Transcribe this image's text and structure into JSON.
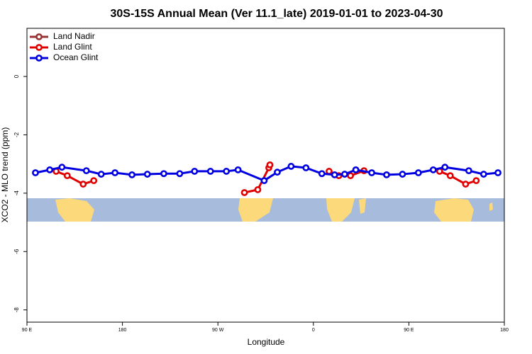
{
  "chart_data": {
    "type": "line",
    "title": "30S-15S Annual Mean (Ver 11.1_late)   2019-01-01 to 2023-04-30",
    "x_label": "Longitude",
    "y_label": "XCO2 - MLO trend (ppm)",
    "xlim": [
      90,
      540
    ],
    "xticks": [
      {
        "value": 90,
        "label": "90 E"
      },
      180,
      {
        "value": 270,
        "label": "90 W"
      },
      {
        "value": 360,
        "label": "0"
      },
      {
        "value": 450,
        "label": "90 E"
      },
      180
    ],
    "ylim": [
      -8.42,
      1.65
    ],
    "yticks": [
      0,
      -2,
      -4,
      -6,
      -8
    ],
    "legend": "top-left",
    "series": [
      {
        "name": "Land Nadir",
        "color": "#993333",
        "x": [],
        "values": []
      },
      {
        "name": "Land Glint",
        "color": "#e00000",
        "x": [
          117.5,
          128,
          143,
          153,
          null,
          295,
          307.6,
          318,
          319,
          null,
          374.8,
          384,
          395,
          407.7,
          null,
          479,
          489,
          503.5,
          513.5
        ],
        "values": [
          -3.25,
          -3.4,
          -3.69,
          -3.57,
          null,
          -3.98,
          -3.88,
          -3.13,
          -3.03,
          null,
          -3.25,
          -3.4,
          -3.4,
          -3.23,
          null,
          -3.25,
          -3.4,
          -3.69,
          -3.57
        ]
      },
      {
        "name": "Ocean Glint",
        "color": "#0000e0",
        "x": [
          98,
          111.5,
          123,
          146,
          160,
          173,
          189,
          203.5,
          219,
          234,
          248,
          263,
          278,
          289,
          313.6,
          326,
          339,
          353,
          368,
          380,
          389.5,
          400,
          415,
          429,
          444,
          459,
          473,
          484,
          506.5,
          520.5,
          534
        ],
        "values": [
          -3.3,
          -3.2,
          -3.11,
          -3.23,
          -3.35,
          -3.3,
          -3.37,
          -3.35,
          -3.33,
          -3.33,
          -3.25,
          -3.25,
          -3.25,
          -3.2,
          -3.57,
          -3.28,
          -3.08,
          -3.13,
          -3.33,
          -3.37,
          -3.35,
          -3.2,
          -3.3,
          -3.37,
          -3.35,
          -3.3,
          -3.2,
          -3.11,
          -3.23,
          -3.35,
          -3.3
        ]
      }
    ]
  }
}
